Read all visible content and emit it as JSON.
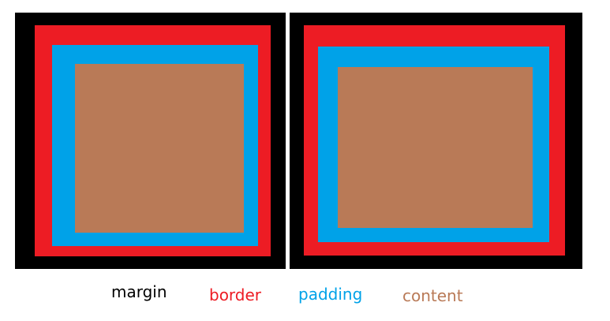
{
  "colors": {
    "margin": "#000000",
    "border": "#ed1c24",
    "padding": "#00a2e8",
    "content": "#b97a57",
    "background": "#ffffff"
  },
  "legend": {
    "margin": "margin",
    "border": "border",
    "padding": "padding",
    "content": "content"
  }
}
